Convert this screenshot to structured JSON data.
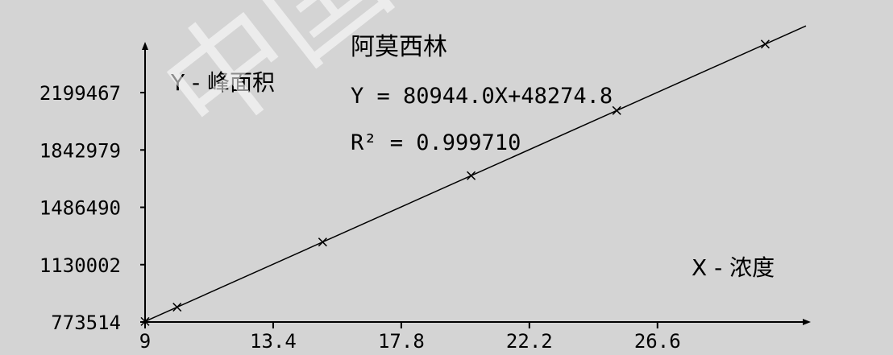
{
  "watermark": "中国仪器",
  "chart_data": {
    "type": "line",
    "title": "阿莫西林",
    "equation": "Y = 80944.0X+48274.8",
    "r2_label": "R² = 0.999710",
    "ylabel": "Y - 峰面积",
    "xlabel": "X - 浓度",
    "x_ticks": [
      "9",
      "13.4",
      "17.8",
      "22.2",
      "26.6"
    ],
    "x_tick_values": [
      9,
      13.4,
      17.8,
      22.2,
      26.6
    ],
    "y_ticks": [
      "773514",
      "1130002",
      "1486490",
      "1842979",
      "2199467"
    ],
    "y_tick_values": [
      773514,
      1130002,
      1486490,
      1842979,
      2199467
    ],
    "xlim": [
      9,
      31.7
    ],
    "ylim": [
      773514,
      2485000
    ],
    "fit": {
      "slope": 80944.0,
      "intercept": 48274.8
    },
    "points": [
      {
        "x": 9.0,
        "y": 776770
      },
      {
        "x": 10.1,
        "y": 865800
      },
      {
        "x": 15.1,
        "y": 1270500
      },
      {
        "x": 20.2,
        "y": 1683300
      },
      {
        "x": 25.2,
        "y": 2088100
      },
      {
        "x": 30.3,
        "y": 2500900
      }
    ],
    "grid": false,
    "colors": {
      "background": "#d4d4d4",
      "axis": "#000000",
      "line": "#000000"
    }
  }
}
